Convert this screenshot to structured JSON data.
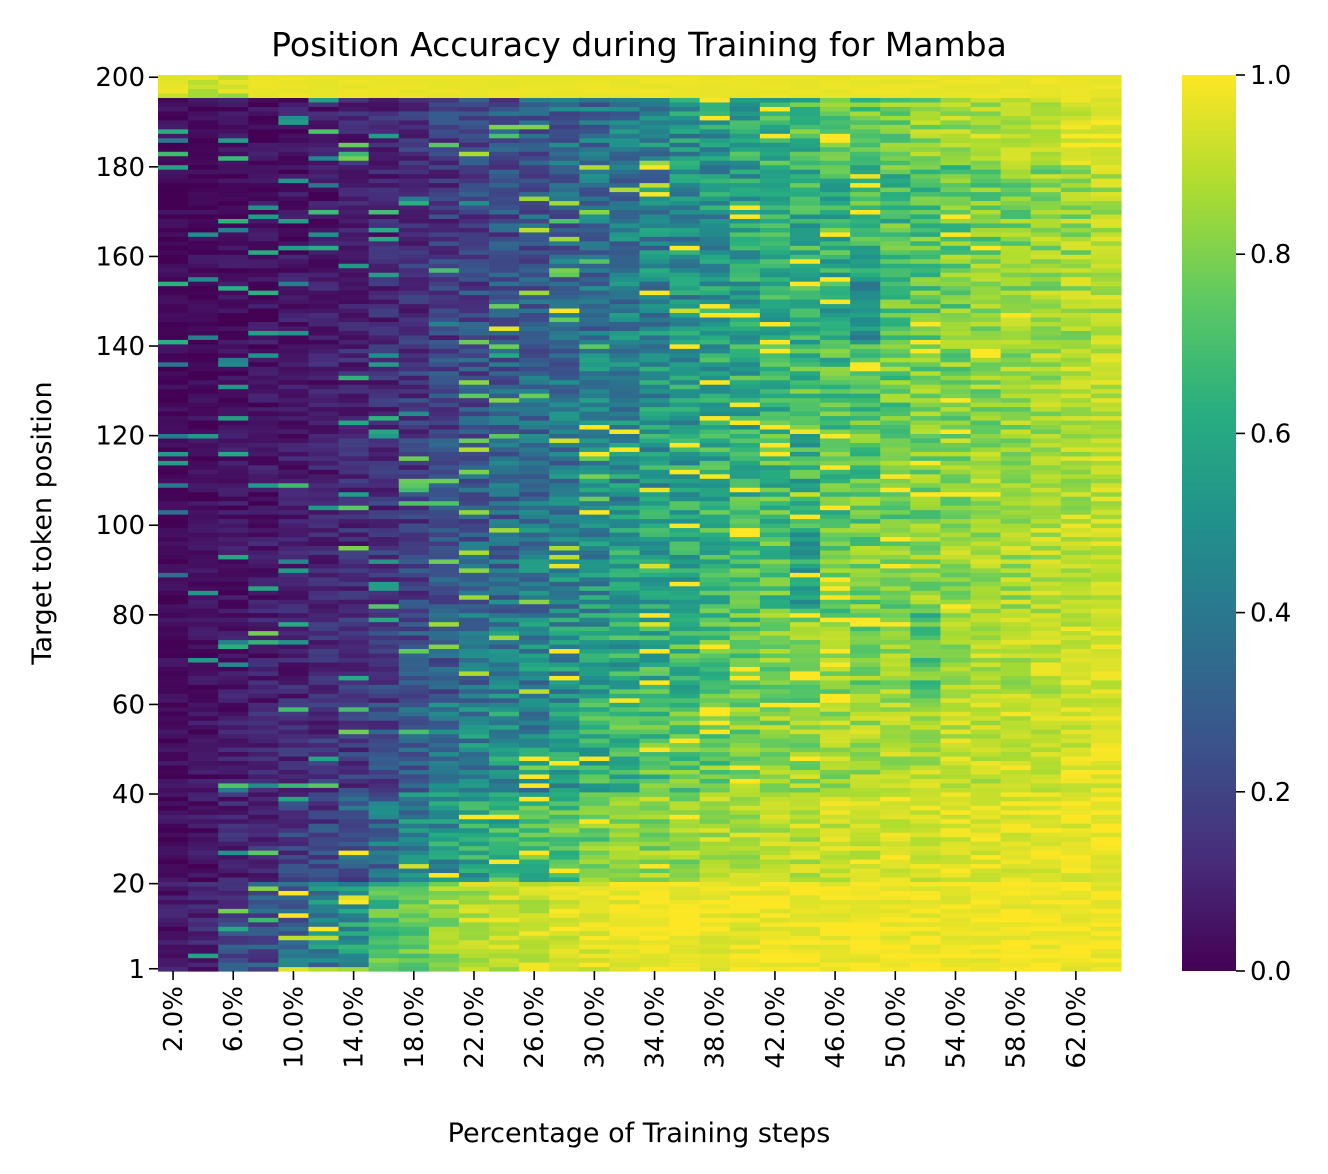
{
  "chart_data": {
    "type": "heatmap",
    "title": "Position Accuracy during Training for Mamba",
    "xlabel": "Percentage of Training steps",
    "ylabel": "Target token position",
    "colormap": "viridis",
    "colorbar": {
      "range": [
        0.0,
        1.0
      ],
      "ticks": [
        "0.0",
        "0.2",
        "0.4",
        "0.6",
        "0.8",
        "1.0"
      ]
    },
    "x_tick_labels": [
      "2.0%",
      "6.0%",
      "10.0%",
      "14.0%",
      "18.0%",
      "22.0%",
      "26.0%",
      "30.0%",
      "34.0%",
      "38.0%",
      "42.0%",
      "46.0%",
      "50.0%",
      "54.0%",
      "58.0%",
      "62.0%"
    ],
    "y_tick_labels": [
      "1",
      "20",
      "40",
      "60",
      "80",
      "100",
      "120",
      "140",
      "160",
      "180",
      "200"
    ],
    "columns": [
      "2.0%",
      "4.0%",
      "6.0%",
      "8.0%",
      "10.0%",
      "12.0%",
      "14.0%",
      "16.0%",
      "18.0%",
      "20.0%",
      "22.0%",
      "24.0%",
      "26.0%",
      "28.0%",
      "30.0%",
      "32.0%",
      "34.0%",
      "36.0%",
      "38.0%",
      "40.0%",
      "42.0%",
      "44.0%",
      "46.0%",
      "48.0%",
      "50.0%",
      "52.0%",
      "54.0%",
      "56.0%",
      "58.0%",
      "60.0%",
      "62.0%",
      "64.0%"
    ],
    "y_range": [
      1,
      200
    ],
    "row_groups": [
      "1-20",
      "21-40",
      "41-60",
      "61-80",
      "81-100",
      "101-120",
      "121-140",
      "141-160",
      "161-180",
      "181-200"
    ],
    "approx_mean_accuracy_by_row_group": [
      [
        0.06,
        0.1,
        0.2,
        0.25,
        0.35,
        0.45,
        0.55,
        0.7,
        0.78,
        0.85,
        0.88,
        0.9,
        0.92,
        0.94,
        0.95,
        0.96,
        0.97,
        0.97,
        0.97,
        0.97,
        0.98,
        0.98,
        0.98,
        0.98,
        0.98,
        0.98,
        0.98,
        0.98,
        0.98,
        0.98,
        0.98,
        0.98
      ],
      [
        0.04,
        0.06,
        0.1,
        0.12,
        0.18,
        0.2,
        0.28,
        0.35,
        0.45,
        0.52,
        0.6,
        0.65,
        0.7,
        0.72,
        0.78,
        0.8,
        0.82,
        0.84,
        0.86,
        0.88,
        0.9,
        0.9,
        0.92,
        0.93,
        0.94,
        0.94,
        0.95,
        0.95,
        0.95,
        0.96,
        0.96,
        0.97
      ],
      [
        0.03,
        0.05,
        0.07,
        0.1,
        0.12,
        0.15,
        0.18,
        0.22,
        0.3,
        0.38,
        0.45,
        0.5,
        0.48,
        0.55,
        0.62,
        0.66,
        0.7,
        0.72,
        0.76,
        0.8,
        0.82,
        0.84,
        0.85,
        0.86,
        0.88,
        0.88,
        0.9,
        0.9,
        0.92,
        0.92,
        0.93,
        0.95
      ],
      [
        0.03,
        0.04,
        0.06,
        0.08,
        0.1,
        0.12,
        0.15,
        0.18,
        0.24,
        0.3,
        0.36,
        0.42,
        0.45,
        0.5,
        0.55,
        0.6,
        0.64,
        0.68,
        0.72,
        0.75,
        0.78,
        0.8,
        0.82,
        0.8,
        0.84,
        0.72,
        0.86,
        0.88,
        0.88,
        0.9,
        0.92,
        0.94
      ],
      [
        0.02,
        0.04,
        0.05,
        0.07,
        0.08,
        0.1,
        0.12,
        0.16,
        0.2,
        0.26,
        0.32,
        0.36,
        0.4,
        0.45,
        0.5,
        0.55,
        0.58,
        0.62,
        0.66,
        0.7,
        0.72,
        0.6,
        0.76,
        0.78,
        0.8,
        0.82,
        0.84,
        0.86,
        0.86,
        0.88,
        0.9,
        0.92
      ],
      [
        0.02,
        0.03,
        0.05,
        0.06,
        0.07,
        0.09,
        0.11,
        0.14,
        0.18,
        0.22,
        0.28,
        0.32,
        0.36,
        0.4,
        0.45,
        0.5,
        0.55,
        0.58,
        0.62,
        0.66,
        0.68,
        0.64,
        0.72,
        0.74,
        0.78,
        0.8,
        0.82,
        0.84,
        0.85,
        0.86,
        0.88,
        0.9
      ],
      [
        0.02,
        0.03,
        0.04,
        0.05,
        0.06,
        0.08,
        0.1,
        0.12,
        0.16,
        0.2,
        0.25,
        0.3,
        0.34,
        0.38,
        0.42,
        0.46,
        0.5,
        0.55,
        0.58,
        0.62,
        0.65,
        0.68,
        0.7,
        0.72,
        0.76,
        0.78,
        0.8,
        0.82,
        0.84,
        0.86,
        0.88,
        0.9
      ],
      [
        0.02,
        0.03,
        0.04,
        0.05,
        0.06,
        0.07,
        0.09,
        0.11,
        0.14,
        0.18,
        0.22,
        0.26,
        0.3,
        0.34,
        0.38,
        0.42,
        0.46,
        0.5,
        0.55,
        0.58,
        0.62,
        0.65,
        0.62,
        0.55,
        0.72,
        0.75,
        0.78,
        0.8,
        0.82,
        0.84,
        0.86,
        0.88
      ],
      [
        0.02,
        0.02,
        0.03,
        0.04,
        0.05,
        0.06,
        0.08,
        0.1,
        0.12,
        0.16,
        0.2,
        0.24,
        0.28,
        0.32,
        0.36,
        0.4,
        0.44,
        0.48,
        0.52,
        0.56,
        0.6,
        0.62,
        0.66,
        0.68,
        0.7,
        0.72,
        0.75,
        0.78,
        0.8,
        0.82,
        0.84,
        0.88
      ],
      [
        0.03,
        0.03,
        0.04,
        0.05,
        0.06,
        0.08,
        0.1,
        0.12,
        0.14,
        0.18,
        0.22,
        0.26,
        0.3,
        0.34,
        0.38,
        0.42,
        0.46,
        0.5,
        0.55,
        0.6,
        0.64,
        0.68,
        0.72,
        0.76,
        0.8,
        0.82,
        0.85,
        0.88,
        0.9,
        0.92,
        0.94,
        0.96
      ]
    ],
    "top_rows_196_200_accuracy": 0.98,
    "grid": false,
    "legend": "none",
    "colorbar_position": "right"
  }
}
